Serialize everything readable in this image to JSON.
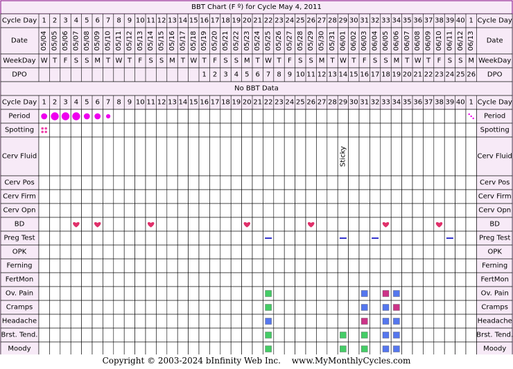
{
  "chart_data": {
    "type": "table",
    "title": "BBT Chart (F º) for Cycle May 4, 2011",
    "no_data_label": "No BBT Data",
    "colors": {
      "header_bg": "#f7eaf7",
      "border": "#800080",
      "grid": "#000000",
      "period": "#ee00ee",
      "spotting": "#ee44aa",
      "heart": "#e0306a",
      "preg_test": "#3333cc",
      "green": "#44cc66",
      "blue": "#5577ee",
      "pink": "#cc3388"
    },
    "cycle_days": [
      "1",
      "2",
      "3",
      "4",
      "5",
      "6",
      "7",
      "8",
      "9",
      "10",
      "11",
      "12",
      "13",
      "14",
      "15",
      "16",
      "17",
      "18",
      "19",
      "20",
      "21",
      "22",
      "23",
      "24",
      "25",
      "26",
      "27",
      "28",
      "29",
      "30",
      "31",
      "32",
      "33",
      "34",
      "35",
      "36",
      "37",
      "38",
      "39",
      "40",
      "1"
    ],
    "dates": [
      "05/04",
      "05/05",
      "05/06",
      "05/07",
      "05/08",
      "05/09",
      "05/10",
      "05/11",
      "05/12",
      "05/13",
      "05/14",
      "05/15",
      "05/16",
      "05/17",
      "05/18",
      "05/19",
      "05/20",
      "05/21",
      "05/22",
      "05/23",
      "05/24",
      "05/25",
      "05/26",
      "05/27",
      "05/28",
      "05/29",
      "05/30",
      "05/31",
      "06/01",
      "06/02",
      "06/03",
      "06/04",
      "06/05",
      "06/06",
      "06/07",
      "06/08",
      "06/09",
      "06/10",
      "06/11",
      "06/12",
      "06/13"
    ],
    "weekdays": [
      "W",
      "T",
      "F",
      "S",
      "S",
      "M",
      "T",
      "W",
      "T",
      "F",
      "S",
      "S",
      "M",
      "T",
      "W",
      "T",
      "F",
      "S",
      "S",
      "M",
      "T",
      "W",
      "T",
      "F",
      "S",
      "S",
      "M",
      "T",
      "W",
      "T",
      "F",
      "S",
      "S",
      "M",
      "T",
      "W",
      "T",
      "F",
      "S",
      "S",
      "M"
    ],
    "dpo": [
      "",
      "",
      "",
      "",
      "",
      "",
      "",
      "",
      "",
      "",
      "",
      "",
      "",
      "",
      "",
      "1",
      "2",
      "3",
      "4",
      "5",
      "6",
      "7",
      "8",
      "9",
      "10",
      "11",
      "12",
      "13",
      "14",
      "15",
      "16",
      "17",
      "18",
      "19",
      "20",
      "21",
      "22",
      "23",
      "24",
      "25",
      "26"
    ],
    "labels": {
      "cycle_day": "Cycle Day",
      "date": "Date",
      "weekday": "WeekDay",
      "dpo": "DPO",
      "period": "Period",
      "spotting": "Spotting",
      "cerv_fluid": "Cerv Fluid",
      "cerv_pos": "Cerv Pos",
      "cerv_firm": "Cerv Firm",
      "cerv_opn": "Cerv Opn",
      "bd": "BD",
      "preg_test": "Preg Test",
      "opk": "OPK",
      "ferning": "Ferning",
      "fertmon": "FertMon",
      "ov_pain": "Ov. Pain",
      "cramps": "Cramps",
      "headache": "Headache",
      "brst_tend": "Brst. Tend.",
      "moody": "Moody"
    },
    "period": [
      {
        "day_index": 0,
        "level": 3
      },
      {
        "day_index": 1,
        "level": 4
      },
      {
        "day_index": 2,
        "level": 4
      },
      {
        "day_index": 3,
        "level": 4
      },
      {
        "day_index": 4,
        "level": 3
      },
      {
        "day_index": 5,
        "level": 3
      },
      {
        "day_index": 6,
        "level": 2
      }
    ],
    "next_period_day_index": 40,
    "spotting_days": [
      0
    ],
    "cerv_fluid_notes": [
      {
        "day_index": 28,
        "text": "Sticky"
      }
    ],
    "bd_days": [
      3,
      5,
      10,
      19,
      25,
      32,
      37
    ],
    "preg_test_days": [
      21,
      28,
      31,
      38
    ],
    "symptoms": {
      "ov_pain": [
        {
          "day_index": 21,
          "color": "green"
        },
        {
          "day_index": 30,
          "color": "blue"
        },
        {
          "day_index": 32,
          "color": "pink"
        },
        {
          "day_index": 33,
          "color": "blue"
        }
      ],
      "cramps": [
        {
          "day_index": 21,
          "color": "green"
        },
        {
          "day_index": 30,
          "color": "blue"
        },
        {
          "day_index": 32,
          "color": "blue"
        },
        {
          "day_index": 33,
          "color": "pink"
        }
      ],
      "headache": [
        {
          "day_index": 21,
          "color": "blue"
        },
        {
          "day_index": 30,
          "color": "pink"
        },
        {
          "day_index": 32,
          "color": "blue"
        },
        {
          "day_index": 33,
          "color": "blue"
        }
      ],
      "brst_tend": [
        {
          "day_index": 21,
          "color": "green"
        },
        {
          "day_index": 28,
          "color": "green"
        },
        {
          "day_index": 30,
          "color": "green"
        },
        {
          "day_index": 32,
          "color": "blue"
        },
        {
          "day_index": 33,
          "color": "blue"
        }
      ],
      "moody": [
        {
          "day_index": 21,
          "color": "green"
        },
        {
          "day_index": 28,
          "color": "green"
        },
        {
          "day_index": 30,
          "color": "green"
        },
        {
          "day_index": 32,
          "color": "blue"
        },
        {
          "day_index": 33,
          "color": "blue"
        }
      ]
    }
  },
  "footer": {
    "copyright": "Copyright © 2003-2024 bInfinity Web Inc.",
    "site": "www.MyMonthlyCycles.com"
  }
}
